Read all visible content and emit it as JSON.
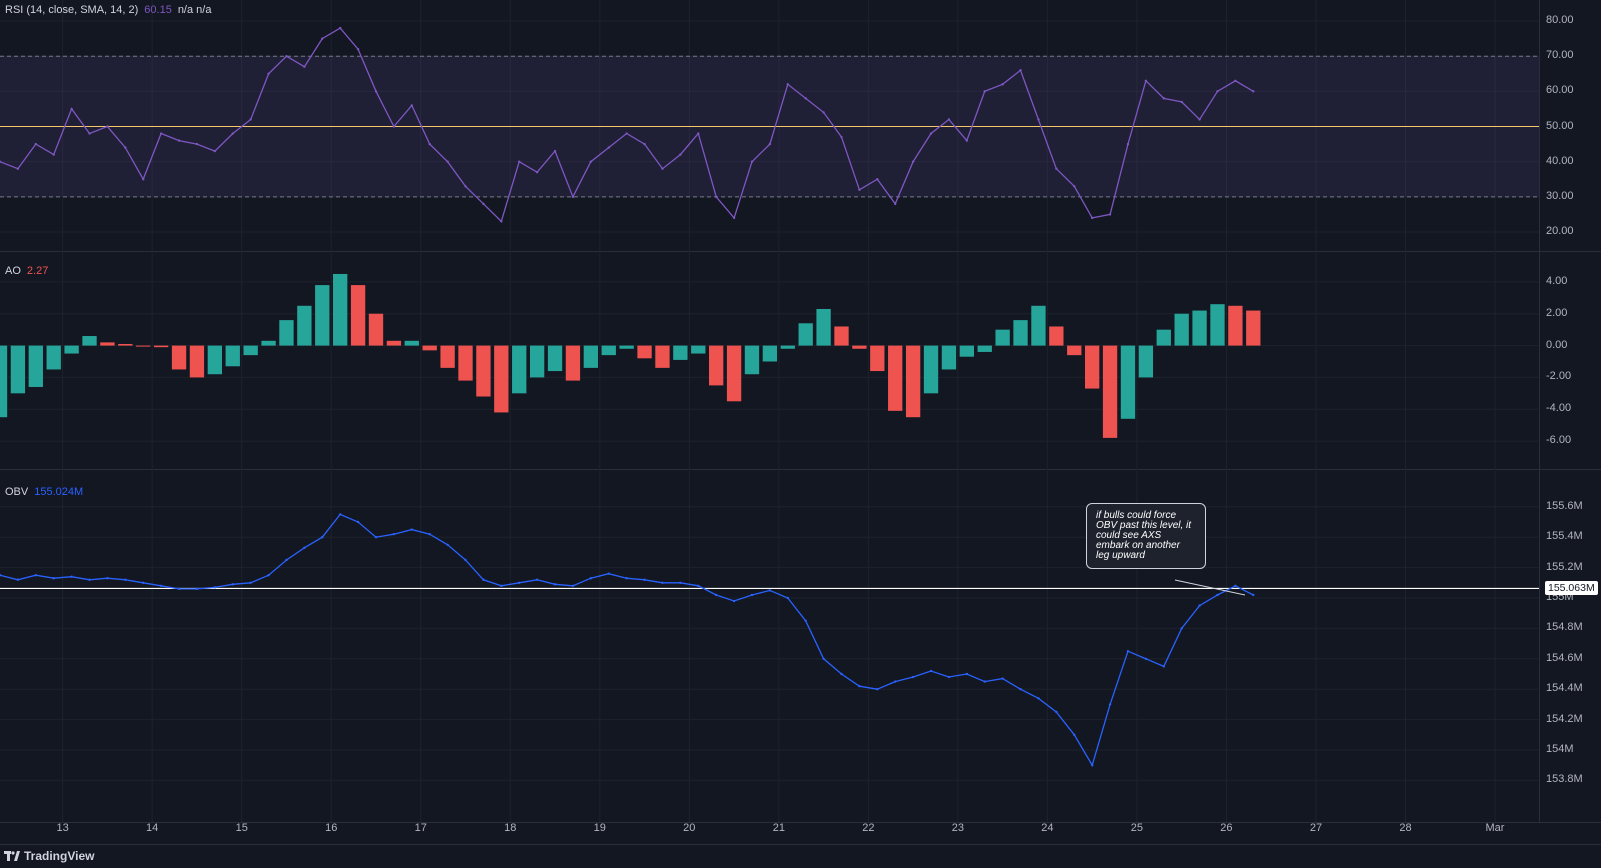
{
  "chart_data": [
    {
      "type": "line",
      "name": "rsi",
      "label": "RSI (14, close, SMA, 14, 2)",
      "value": "60.15",
      "extra": "n/a  n/a",
      "ylim": [
        18,
        82
      ],
      "y_ticks": [
        "80.00",
        "70.00",
        "60.00",
        "50.00",
        "40.00",
        "30.00",
        "20.00"
      ],
      "upper_band": 70,
      "lower_band": 30,
      "middle": 50,
      "x": [
        12.3,
        12.5,
        12.7,
        12.9,
        13.1,
        13.3,
        13.5,
        13.7,
        13.9,
        14.1,
        14.3,
        14.5,
        14.7,
        14.9,
        15.1,
        15.3,
        15.5,
        15.7,
        15.9,
        16.1,
        16.3,
        16.5,
        16.7,
        16.9,
        17.1,
        17.3,
        17.5,
        17.7,
        17.9,
        18.1,
        18.3,
        18.5,
        18.7,
        18.9,
        19.1,
        19.3,
        19.5,
        19.7,
        19.9,
        20.1,
        20.3,
        20.5,
        20.7,
        20.9,
        21.1,
        21.3,
        21.5,
        21.7,
        21.9,
        22.1,
        22.3,
        22.5,
        22.7,
        22.9,
        23.1,
        23.3,
        23.5,
        23.7,
        23.9,
        24.1,
        24.3,
        24.5,
        24.7,
        24.9,
        25.1,
        25.3,
        25.5,
        25.7,
        25.9,
        26.1,
        26.3
      ],
      "values": [
        40,
        38,
        45,
        42,
        55,
        48,
        50,
        44,
        35,
        48,
        46,
        45,
        43,
        48,
        52,
        65,
        70,
        67,
        75,
        78,
        72,
        60,
        50,
        56,
        45,
        40,
        33,
        28,
        23,
        40,
        37,
        43,
        30,
        40,
        44,
        48,
        45,
        38,
        42,
        48,
        30,
        24,
        40,
        45,
        62,
        58,
        54,
        47,
        32,
        35,
        28,
        40,
        48,
        52,
        46,
        60,
        62,
        66,
        52,
        38,
        33,
        24,
        25,
        45,
        63,
        58,
        57,
        52,
        60,
        63,
        60
      ],
      "color": "#7e57c2"
    },
    {
      "type": "bar",
      "name": "ao",
      "label": "AO",
      "value": "2.27",
      "ylim": [
        -7,
        5
      ],
      "y_ticks": [
        "4.00",
        "2.00",
        "0.00",
        "-2.00",
        "-4.00",
        "-6.00"
      ],
      "x": [
        12.3,
        12.5,
        12.7,
        12.9,
        13.1,
        13.3,
        13.5,
        13.7,
        13.9,
        14.1,
        14.3,
        14.5,
        14.7,
        14.9,
        15.1,
        15.3,
        15.5,
        15.7,
        15.9,
        16.1,
        16.3,
        16.5,
        16.7,
        16.9,
        17.1,
        17.3,
        17.5,
        17.7,
        17.9,
        18.1,
        18.3,
        18.5,
        18.7,
        18.9,
        19.1,
        19.3,
        19.5,
        19.7,
        19.9,
        20.1,
        20.3,
        20.5,
        20.7,
        20.9,
        21.1,
        21.3,
        21.5,
        21.7,
        21.9,
        22.1,
        22.3,
        22.5,
        22.7,
        22.9,
        23.1,
        23.3,
        23.5,
        23.7,
        23.9,
        24.1,
        24.3,
        24.5,
        24.7,
        24.9,
        25.1,
        25.3,
        25.5,
        25.7,
        25.9,
        26.1,
        26.3
      ],
      "values": [
        -4.5,
        -3,
        -2.6,
        -1.5,
        -0.5,
        0.6,
        0.2,
        0.1,
        0,
        -0.1,
        -1.5,
        -2,
        -1.8,
        -1.3,
        -0.6,
        0.3,
        1.6,
        2.5,
        3.8,
        4.5,
        3.8,
        2,
        0.3,
        0.3,
        -0.3,
        -1.4,
        -2.2,
        -3.2,
        -4.2,
        -3,
        -2,
        -1.6,
        -2.2,
        -1.4,
        -0.6,
        -0.2,
        -0.8,
        -1.4,
        -0.9,
        -0.5,
        -2.5,
        -3.5,
        -1.8,
        -1,
        -0.2,
        1.4,
        2.3,
        1.2,
        -0.2,
        -1.6,
        -4.1,
        -4.5,
        -3,
        -1.5,
        -0.7,
        -0.4,
        1,
        1.6,
        2.5,
        1.2,
        -0.6,
        -2.7,
        -5.8,
        -4.6,
        -2,
        1,
        2,
        2.2,
        2.6,
        2.5,
        2.2
      ],
      "up_color": "#26a69a",
      "down_color": "#ef5350"
    },
    {
      "type": "line",
      "name": "obv",
      "label": "OBV",
      "value": "155.024M",
      "ylim": [
        153.75,
        155.75
      ],
      "y_ticks": [
        "155.6M",
        "155.4M",
        "155.2M",
        "155M",
        "154.8M",
        "154.6M",
        "154.4M",
        "154.2M",
        "154M",
        "153.8M"
      ],
      "level": 155.063,
      "level_label": "155.063M",
      "x": [
        12.3,
        12.5,
        12.7,
        12.9,
        13.1,
        13.3,
        13.5,
        13.7,
        13.9,
        14.1,
        14.3,
        14.5,
        14.7,
        14.9,
        15.1,
        15.3,
        15.5,
        15.7,
        15.9,
        16.1,
        16.3,
        16.5,
        16.7,
        16.9,
        17.1,
        17.3,
        17.5,
        17.7,
        17.9,
        18.1,
        18.3,
        18.5,
        18.7,
        18.9,
        19.1,
        19.3,
        19.5,
        19.7,
        19.9,
        20.1,
        20.3,
        20.5,
        20.7,
        20.9,
        21.1,
        21.3,
        21.5,
        21.7,
        21.9,
        22.1,
        22.3,
        22.5,
        22.7,
        22.9,
        23.1,
        23.3,
        23.5,
        23.7,
        23.9,
        24.1,
        24.3,
        24.5,
        24.7,
        24.9,
        25.1,
        25.3,
        25.5,
        25.7,
        25.9,
        26.1,
        26.3
      ],
      "values": [
        155.15,
        155.12,
        155.15,
        155.13,
        155.14,
        155.12,
        155.13,
        155.12,
        155.1,
        155.08,
        155.06,
        155.06,
        155.07,
        155.09,
        155.1,
        155.15,
        155.25,
        155.33,
        155.4,
        155.55,
        155.5,
        155.4,
        155.42,
        155.45,
        155.42,
        155.35,
        155.25,
        155.12,
        155.08,
        155.1,
        155.12,
        155.09,
        155.08,
        155.13,
        155.16,
        155.13,
        155.12,
        155.1,
        155.1,
        155.08,
        155.02,
        154.98,
        155.02,
        155.05,
        155.0,
        154.85,
        154.6,
        154.5,
        154.42,
        154.4,
        154.45,
        154.48,
        154.52,
        154.48,
        154.5,
        154.45,
        154.47,
        154.4,
        154.34,
        154.25,
        154.1,
        153.9,
        154.3,
        154.65,
        154.6,
        154.55,
        154.8,
        154.95,
        155.02,
        155.08,
        155.02
      ],
      "color": "#2962ff",
      "annotation": "if bulls could force OBV past this level, it could see AXS embark on another leg upward"
    }
  ],
  "x_axis": {
    "ticks": [
      {
        "x": 13,
        "label": "13"
      },
      {
        "x": 14,
        "label": "14"
      },
      {
        "x": 15,
        "label": "15"
      },
      {
        "x": 16,
        "label": "16"
      },
      {
        "x": 17,
        "label": "17"
      },
      {
        "x": 18,
        "label": "18"
      },
      {
        "x": 19,
        "label": "19"
      },
      {
        "x": 20,
        "label": "20"
      },
      {
        "x": 21,
        "label": "21"
      },
      {
        "x": 22,
        "label": "22"
      },
      {
        "x": 23,
        "label": "23"
      },
      {
        "x": 24,
        "label": "24"
      },
      {
        "x": 25,
        "label": "25"
      },
      {
        "x": 26,
        "label": "26"
      },
      {
        "x": 27,
        "label": "27"
      },
      {
        "x": 28,
        "label": "28"
      },
      {
        "x": 29,
        "label": "Mar"
      }
    ]
  },
  "footer": {
    "brand": "TradingView"
  },
  "colors": {
    "background": "#131722",
    "grid": "#1e222d",
    "separator": "#2a2e39",
    "rsi_band": "#7e57c2",
    "midline": "#f7c66a",
    "level_line": "#ffffff"
  }
}
